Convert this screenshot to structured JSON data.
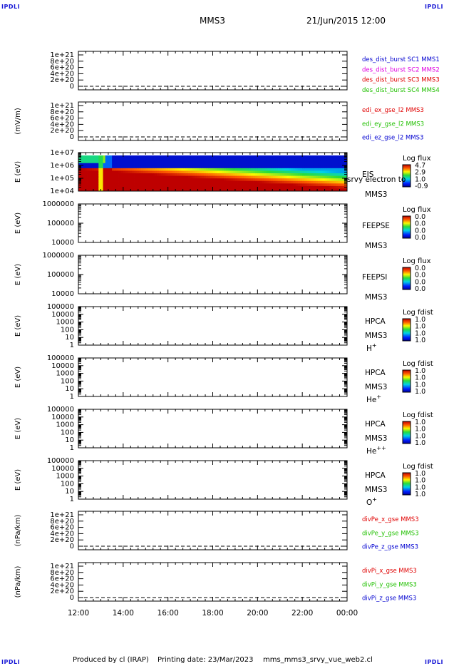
{
  "corner_label": "IPDLI",
  "header": {
    "spacecraft": "MMS3",
    "datetime": "21/Jun/2015 12:00"
  },
  "footer": {
    "produced_by": "Produced by cl (IRAP)",
    "printing_date": "Printing date: 23/Mar/2023",
    "script": "mms_mms3_srvy_vue_web2.cl"
  },
  "colors": {
    "red": "#e00000",
    "green": "#20c000",
    "blue": "#0000d0",
    "magenta": "#e000e0"
  },
  "time_axis": {
    "ticks": [
      "12:00",
      "14:00",
      "16:00",
      "18:00",
      "20:00",
      "22:00",
      "00:00"
    ]
  },
  "chart_data": [
    {
      "type": "line",
      "panel": "des_dist_burst",
      "ylabel": "",
      "yticks": [
        "1e+21",
        "8e+20",
        "6e+20",
        "4e+20",
        "2e+20",
        "0"
      ],
      "legend": [
        {
          "text": "des_dist_burst SC1 MMS1",
          "color": "#0000d0"
        },
        {
          "text": "des_dist_burst SC2 MMS2",
          "color": "#e000e0"
        },
        {
          "text": "des_dist_burst SC3 MMS3",
          "color": "#e00000"
        },
        {
          "text": "des_dist_burst SC4 MMS4",
          "color": "#20c000"
        }
      ],
      "zero_line": "dashed",
      "series": []
    },
    {
      "type": "line",
      "panel": "edi_e_gse",
      "ylabel": "(mV/m)",
      "yticks": [
        "1e+21",
        "8e+20",
        "6e+20",
        "4e+20",
        "2e+20",
        "0"
      ],
      "legend": [
        {
          "text": "edi_ex_gse_l2 MMS3",
          "color": "#e00000"
        },
        {
          "text": "edi_ey_gse_l2 MMS3",
          "color": "#20c000"
        },
        {
          "text": "edi_ez_gse_l2 MMS3",
          "color": "#0000d0"
        }
      ],
      "zero_line": "dashed",
      "series": []
    },
    {
      "type": "heatmap",
      "panel": "EIS",
      "ylabel": "E (eV)",
      "yticks": [
        "1e+07",
        "1e+06",
        "1e+05",
        "1e+04"
      ],
      "yscale": "log",
      "right_labels": [
        "EIS",
        "MMS3"
      ],
      "overflow_label": "srvy electron to",
      "colorbar": {
        "title": "Log flux",
        "ticks": [
          "4.7",
          "2.9",
          "1.0",
          "-0.9"
        ]
      }
    },
    {
      "type": "heatmap",
      "panel": "FEEPSE",
      "ylabel": "E (eV)",
      "yticks": [
        "1000000",
        "100000",
        "10000"
      ],
      "yscale": "log",
      "right_labels": [
        "FEEPSE",
        "MMS3"
      ],
      "colorbar": {
        "title": "Log flux",
        "ticks": [
          "0.0",
          "0.0",
          "0.0",
          "0.0"
        ]
      }
    },
    {
      "type": "heatmap",
      "panel": "FEEPSI",
      "ylabel": "E (eV)",
      "yticks": [
        "1000000",
        "100000",
        "10000"
      ],
      "yscale": "log",
      "right_labels": [
        "FEEPSI",
        "MMS3"
      ],
      "colorbar": {
        "title": "Log flux",
        "ticks": [
          "0.0",
          "0.0",
          "0.0",
          "0.0"
        ]
      }
    },
    {
      "type": "heatmap",
      "panel": "HPCA H+",
      "ylabel": "E (eV)",
      "yticks": [
        "100000",
        "10000",
        "1000",
        "100",
        "10",
        "1"
      ],
      "yscale": "log",
      "right_labels": [
        "HPCA",
        "MMS3"
      ],
      "species": "H",
      "charge": "+",
      "colorbar": {
        "title": "Log fdist",
        "ticks": [
          "1.0",
          "1.0",
          "1.0",
          "1.0"
        ]
      }
    },
    {
      "type": "heatmap",
      "panel": "HPCA He+",
      "ylabel": "E (eV)",
      "yticks": [
        "100000",
        "10000",
        "1000",
        "100",
        "10",
        "1"
      ],
      "yscale": "log",
      "right_labels": [
        "HPCA",
        "MMS3"
      ],
      "species": "He",
      "charge": "+",
      "colorbar": {
        "title": "Log fdist",
        "ticks": [
          "1.0",
          "1.0",
          "1.0",
          "1.0"
        ]
      }
    },
    {
      "type": "heatmap",
      "panel": "HPCA He++",
      "ylabel": "E (eV)",
      "yticks": [
        "100000",
        "10000",
        "1000",
        "100",
        "10",
        "1"
      ],
      "yscale": "log",
      "right_labels": [
        "HPCA",
        "MMS3"
      ],
      "species": "He",
      "charge": "++",
      "colorbar": {
        "title": "Log fdist",
        "ticks": [
          "1.0",
          "1.0",
          "1.0",
          "1.0"
        ]
      }
    },
    {
      "type": "heatmap",
      "panel": "HPCA O+",
      "ylabel": "E (eV)",
      "yticks": [
        "100000",
        "10000",
        "1000",
        "100",
        "10",
        "1"
      ],
      "yscale": "log",
      "right_labels": [
        "HPCA",
        "MMS3"
      ],
      "species": "O",
      "charge": "+",
      "colorbar": {
        "title": "Log fdist",
        "ticks": [
          "1.0",
          "1.0",
          "1.0",
          "1.0"
        ]
      }
    },
    {
      "type": "line",
      "panel": "divPe",
      "ylabel": "(nPa/km)",
      "yticks": [
        "1e+21",
        "8e+20",
        "6e+20",
        "4e+20",
        "2e+20",
        "0"
      ],
      "legend": [
        {
          "text": "divPe_x_gse MMS3",
          "color": "#e00000"
        },
        {
          "text": "divPe_y_gse MMS3",
          "color": "#20c000"
        },
        {
          "text": "divPe_z_gse MMS3",
          "color": "#0000d0"
        }
      ],
      "zero_line": "dashed",
      "series": []
    },
    {
      "type": "line",
      "panel": "divPi",
      "ylabel": "(nPa/km)",
      "yticks": [
        "1e+21",
        "8e+20",
        "6e+20",
        "4e+20",
        "2e+20",
        "0"
      ],
      "legend": [
        {
          "text": "divPi_x_gse MMS3",
          "color": "#e00000"
        },
        {
          "text": "divPi_y_gse MMS3",
          "color": "#20c000"
        },
        {
          "text": "divPi_z_gse MMS3",
          "color": "#0000d0"
        }
      ],
      "zero_line": "dashed",
      "series": []
    }
  ]
}
